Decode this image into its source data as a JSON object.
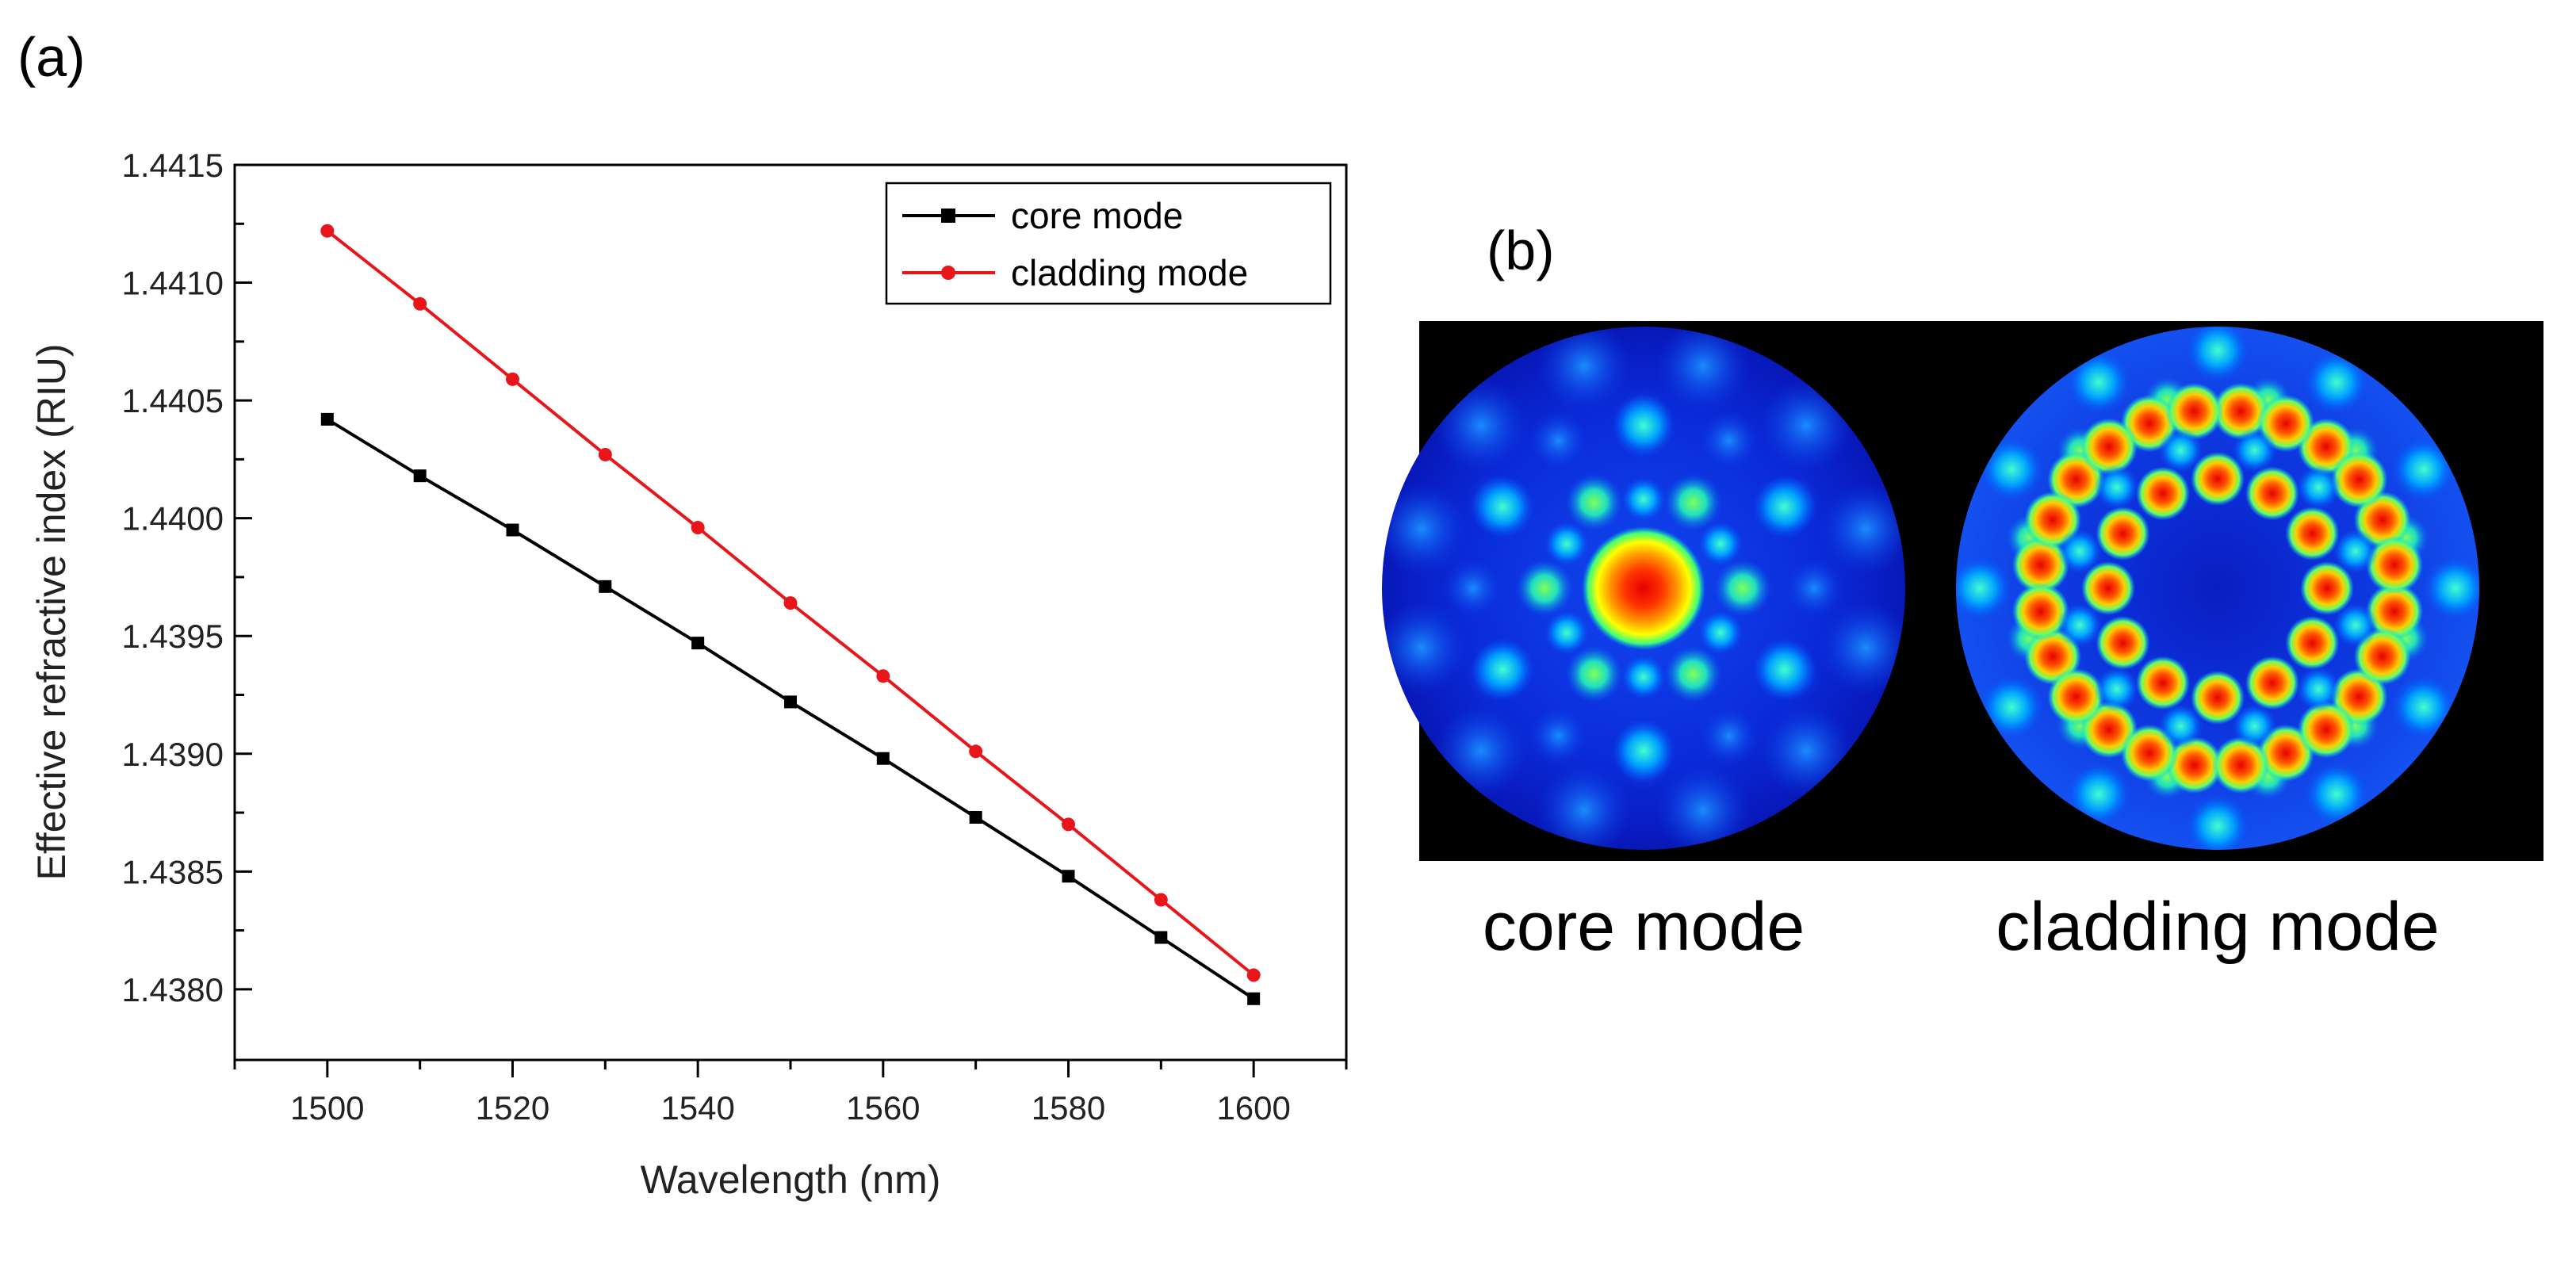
{
  "figure": {
    "panel_a_label": "(a)",
    "panel_b_label": "(b)"
  },
  "chart_data": {
    "type": "line",
    "title": "",
    "xlabel": "Wavelength (nm)",
    "ylabel": "Effective refractive index (RIU)",
    "xlim": [
      1490,
      1610
    ],
    "ylim": [
      1.4377,
      1.4415
    ],
    "x_ticks": [
      {
        "value": 1500,
        "label": "1500"
      },
      {
        "value": 1520,
        "label": "1520"
      },
      {
        "value": 1540,
        "label": "1540"
      },
      {
        "value": 1560,
        "label": "1560"
      },
      {
        "value": 1580,
        "label": "1580"
      },
      {
        "value": 1600,
        "label": "1600"
      }
    ],
    "y_ticks": [
      {
        "value": 1.438,
        "label": "1.4380"
      },
      {
        "value": 1.4385,
        "label": "1.4385"
      },
      {
        "value": 1.439,
        "label": "1.4390"
      },
      {
        "value": 1.4395,
        "label": "1.4395"
      },
      {
        "value": 1.44,
        "label": "1.4400"
      },
      {
        "value": 1.4405,
        "label": "1.4405"
      },
      {
        "value": 1.441,
        "label": "1.4410"
      },
      {
        "value": 1.4415,
        "label": "1.4415"
      }
    ],
    "legend_position": "top-right",
    "x": [
      1500,
      1510,
      1520,
      1530,
      1540,
      1550,
      1560,
      1570,
      1580,
      1590,
      1600
    ],
    "series": [
      {
        "name": "core mode",
        "color": "#000000",
        "marker": "square",
        "values": [
          1.44042,
          1.44018,
          1.43995,
          1.43971,
          1.43947,
          1.43922,
          1.43898,
          1.43873,
          1.43848,
          1.43822,
          1.43796
        ]
      },
      {
        "name": "cladding mode",
        "color": "#e8161b",
        "marker": "circle",
        "values": [
          1.44122,
          1.44091,
          1.44059,
          1.44027,
          1.43996,
          1.43964,
          1.43933,
          1.43901,
          1.4387,
          1.43838,
          1.43806
        ]
      }
    ]
  },
  "mode_images": {
    "background_color": "#000000",
    "field_colors": [
      "#0a14c8",
      "#00c8ff",
      "#3cff78",
      "#ffff00",
      "#ff8c00",
      "#e60000"
    ],
    "items": [
      {
        "label": "core mode"
      },
      {
        "label": "cladding mode"
      }
    ]
  }
}
